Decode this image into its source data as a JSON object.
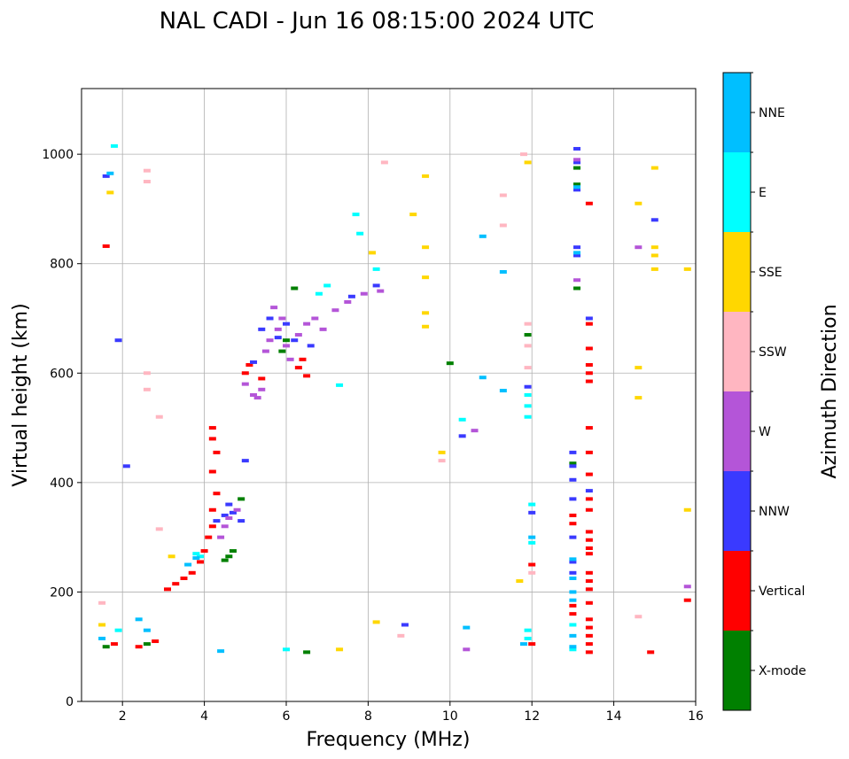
{
  "chart_data": {
    "type": "scatter",
    "title": "NAL CADI - Jun 16 08:15:00 2024 UTC",
    "xlabel": "Frequency (MHz)",
    "ylabel": "Virtual height (km)",
    "xlim": [
      1,
      16
    ],
    "ylim": [
      0,
      1120
    ],
    "xticks": [
      2,
      4,
      6,
      8,
      10,
      12,
      14,
      16
    ],
    "yticks": [
      0,
      200,
      400,
      600,
      800,
      1000
    ],
    "grid": true,
    "colorbar": {
      "label": "Azimuth Direction",
      "categories": [
        {
          "name": "X-mode",
          "color": "#008000"
        },
        {
          "name": "Vertical",
          "color": "#ff0000"
        },
        {
          "name": "NNW",
          "color": "#3a3aff"
        },
        {
          "name": "W",
          "color": "#b455d8"
        },
        {
          "name": "SSW",
          "color": "#ffb6c1"
        },
        {
          "name": "SSE",
          "color": "#ffd700"
        },
        {
          "name": "E",
          "color": "#00ffff"
        },
        {
          "name": "NNE",
          "color": "#00bfff"
        }
      ]
    },
    "series": [
      {
        "name": "X-mode",
        "points": [
          [
            1.6,
            100
          ],
          [
            2.6,
            105
          ],
          [
            4.5,
            258
          ],
          [
            4.6,
            265
          ],
          [
            4.7,
            275
          ],
          [
            6.0,
            660
          ],
          [
            6.2,
            755
          ],
          [
            6.5,
            90
          ],
          [
            10.0,
            618
          ],
          [
            11.9,
            670
          ],
          [
            13.1,
            755
          ],
          [
            13.1,
            975
          ],
          [
            13.1,
            945
          ],
          [
            4.9,
            370
          ],
          [
            5.9,
            640
          ],
          [
            13.0,
            435
          ]
        ]
      },
      {
        "name": "Vertical",
        "points": [
          [
            1.6,
            832
          ],
          [
            1.8,
            105
          ],
          [
            2.4,
            100
          ],
          [
            2.8,
            110
          ],
          [
            3.1,
            205
          ],
          [
            3.3,
            215
          ],
          [
            3.5,
            225
          ],
          [
            3.7,
            235
          ],
          [
            3.9,
            255
          ],
          [
            4.0,
            275
          ],
          [
            4.1,
            300
          ],
          [
            4.2,
            320
          ],
          [
            4.2,
            350
          ],
          [
            4.3,
            380
          ],
          [
            4.2,
            420
          ],
          [
            4.3,
            455
          ],
          [
            4.2,
            480
          ],
          [
            4.2,
            500
          ],
          [
            5.0,
            600
          ],
          [
            5.1,
            615
          ],
          [
            5.4,
            590
          ],
          [
            6.3,
            610
          ],
          [
            6.4,
            625
          ],
          [
            6.5,
            595
          ],
          [
            12.0,
            250
          ],
          [
            12.0,
            105
          ],
          [
            13.0,
            340
          ],
          [
            13.0,
            325
          ],
          [
            13.0,
            160
          ],
          [
            13.0,
            175
          ],
          [
            13.4,
            910
          ],
          [
            13.4,
            690
          ],
          [
            13.4,
            645
          ],
          [
            13.4,
            615
          ],
          [
            13.4,
            600
          ],
          [
            13.4,
            585
          ],
          [
            13.4,
            500
          ],
          [
            13.4,
            455
          ],
          [
            13.4,
            415
          ],
          [
            13.4,
            370
          ],
          [
            13.4,
            350
          ],
          [
            13.4,
            310
          ],
          [
            13.4,
            295
          ],
          [
            13.4,
            280
          ],
          [
            13.4,
            270
          ],
          [
            13.4,
            235
          ],
          [
            13.4,
            220
          ],
          [
            13.4,
            205
          ],
          [
            13.4,
            180
          ],
          [
            13.4,
            150
          ],
          [
            13.4,
            135
          ],
          [
            13.4,
            120
          ],
          [
            13.4,
            105
          ],
          [
            13.4,
            90
          ],
          [
            14.9,
            90
          ],
          [
            15.8,
            185
          ]
        ]
      },
      {
        "name": "NNW",
        "points": [
          [
            1.6,
            960
          ],
          [
            1.9,
            660
          ],
          [
            2.1,
            430
          ],
          [
            4.3,
            330
          ],
          [
            4.5,
            340
          ],
          [
            4.6,
            360
          ],
          [
            4.7,
            345
          ],
          [
            4.9,
            330
          ],
          [
            5.0,
            440
          ],
          [
            5.2,
            620
          ],
          [
            5.4,
            680
          ],
          [
            5.6,
            700
          ],
          [
            5.8,
            665
          ],
          [
            6.0,
            690
          ],
          [
            6.2,
            660
          ],
          [
            6.6,
            650
          ],
          [
            7.6,
            740
          ],
          [
            8.2,
            760
          ],
          [
            10.3,
            485
          ],
          [
            11.9,
            575
          ],
          [
            12.0,
            345
          ],
          [
            13.0,
            455
          ],
          [
            13.0,
            430
          ],
          [
            13.0,
            405
          ],
          [
            13.0,
            370
          ],
          [
            13.0,
            300
          ],
          [
            13.0,
            255
          ],
          [
            13.0,
            235
          ],
          [
            13.1,
            830
          ],
          [
            13.1,
            815
          ],
          [
            13.1,
            1010
          ],
          [
            13.1,
            985
          ],
          [
            13.1,
            935
          ],
          [
            13.4,
            700
          ],
          [
            13.4,
            385
          ],
          [
            15.0,
            880
          ],
          [
            8.9,
            140
          ]
        ]
      },
      {
        "name": "W",
        "points": [
          [
            4.4,
            300
          ],
          [
            4.5,
            320
          ],
          [
            4.6,
            335
          ],
          [
            4.8,
            350
          ],
          [
            5.0,
            580
          ],
          [
            5.2,
            560
          ],
          [
            5.3,
            555
          ],
          [
            5.4,
            570
          ],
          [
            5.5,
            640
          ],
          [
            5.6,
            660
          ],
          [
            5.7,
            720
          ],
          [
            5.8,
            680
          ],
          [
            5.9,
            700
          ],
          [
            6.0,
            650
          ],
          [
            6.1,
            625
          ],
          [
            6.3,
            670
          ],
          [
            6.5,
            690
          ],
          [
            6.7,
            700
          ],
          [
            6.9,
            680
          ],
          [
            7.2,
            715
          ],
          [
            7.5,
            730
          ],
          [
            7.9,
            745
          ],
          [
            8.3,
            750
          ],
          [
            13.1,
            990
          ],
          [
            13.1,
            770
          ],
          [
            14.6,
            830
          ],
          [
            15.8,
            210
          ],
          [
            10.6,
            495
          ],
          [
            10.4,
            95
          ]
        ]
      },
      {
        "name": "SSW",
        "points": [
          [
            1.5,
            180
          ],
          [
            2.6,
            950
          ],
          [
            2.6,
            970
          ],
          [
            2.6,
            600
          ],
          [
            2.6,
            570
          ],
          [
            2.9,
            520
          ],
          [
            2.9,
            315
          ],
          [
            8.4,
            985
          ],
          [
            11.3,
            925
          ],
          [
            11.8,
            1000
          ],
          [
            11.9,
            690
          ],
          [
            11.9,
            650
          ],
          [
            11.9,
            610
          ],
          [
            12.0,
            235
          ],
          [
            14.6,
            155
          ],
          [
            8.8,
            120
          ],
          [
            11.3,
            870
          ],
          [
            9.8,
            440
          ]
        ]
      },
      {
        "name": "SSE",
        "points": [
          [
            1.5,
            140
          ],
          [
            1.7,
            930
          ],
          [
            3.2,
            265
          ],
          [
            7.3,
            95
          ],
          [
            8.1,
            820
          ],
          [
            8.2,
            145
          ],
          [
            9.1,
            890
          ],
          [
            9.4,
            960
          ],
          [
            9.4,
            830
          ],
          [
            9.4,
            775
          ],
          [
            9.4,
            710
          ],
          [
            9.4,
            685
          ],
          [
            9.8,
            455
          ],
          [
            11.7,
            220
          ],
          [
            11.9,
            985
          ],
          [
            14.6,
            910
          ],
          [
            14.6,
            610
          ],
          [
            14.6,
            555
          ],
          [
            15.0,
            975
          ],
          [
            15.0,
            830
          ],
          [
            15.0,
            790
          ],
          [
            15.8,
            790
          ],
          [
            15.8,
            350
          ],
          [
            15.0,
            815
          ]
        ]
      },
      {
        "name": "E",
        "points": [
          [
            1.8,
            1015
          ],
          [
            1.9,
            130
          ],
          [
            3.8,
            270
          ],
          [
            3.9,
            265
          ],
          [
            6.0,
            95
          ],
          [
            7.3,
            578
          ],
          [
            7.7,
            890
          ],
          [
            7.8,
            855
          ],
          [
            8.2,
            790
          ],
          [
            10.3,
            515
          ],
          [
            11.9,
            560
          ],
          [
            11.9,
            540
          ],
          [
            11.9,
            520
          ],
          [
            12.0,
            360
          ],
          [
            12.0,
            290
          ],
          [
            11.9,
            130
          ],
          [
            11.9,
            115
          ],
          [
            13.0,
            140
          ],
          [
            13.0,
            95
          ],
          [
            7.0,
            760
          ],
          [
            6.8,
            745
          ]
        ]
      },
      {
        "name": "NNE",
        "points": [
          [
            1.5,
            115
          ],
          [
            1.7,
            965
          ],
          [
            2.4,
            150
          ],
          [
            2.6,
            130
          ],
          [
            3.6,
            250
          ],
          [
            3.8,
            262
          ],
          [
            4.4,
            92
          ],
          [
            10.8,
            850
          ],
          [
            10.8,
            592
          ],
          [
            11.3,
            785
          ],
          [
            11.3,
            568
          ],
          [
            11.8,
            105
          ],
          [
            12.0,
            300
          ],
          [
            13.0,
            260
          ],
          [
            13.0,
            225
          ],
          [
            13.0,
            200
          ],
          [
            13.0,
            185
          ],
          [
            13.0,
            120
          ],
          [
            13.0,
            100
          ],
          [
            13.1,
            820
          ],
          [
            13.1,
            940
          ],
          [
            10.4,
            135
          ]
        ]
      }
    ]
  }
}
